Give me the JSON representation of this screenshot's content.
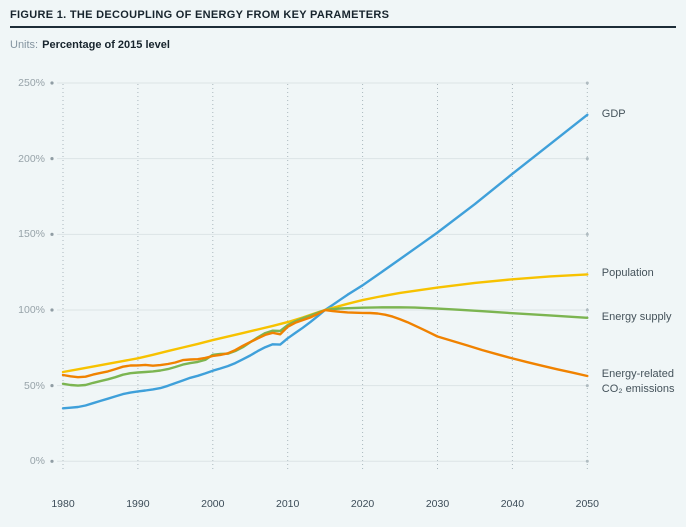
{
  "header": {
    "title": "FIGURE 1. THE DECOUPLING OF ENERGY FROM KEY PARAMETERS"
  },
  "units": {
    "prefix": "Units:",
    "value": "Percentage of 2015 level"
  },
  "colors": {
    "background": "#f0f6f7",
    "title_text": "#17242d",
    "rule": "#1d2d38",
    "grid_horizontal": "#dce4e6",
    "grid_vertical": "#aab7bd",
    "grid_end_dot": "#b0bcc1",
    "tick_dot": "#909da4",
    "y_tick_text": "#97a3a9",
    "x_tick_text": "#3c4c58",
    "legend_text": "#45535b",
    "gdp": "#3fa0da",
    "population": "#f7c200",
    "energy_supply": "#7cb551",
    "co2_emissions": "#f08200"
  },
  "chart_data": {
    "type": "line",
    "title": "FIGURE 1. THE DECOUPLING OF ENERGY FROM KEY PARAMETERS",
    "units_label": "Percentage of 2015 level",
    "x_range": [
      1980,
      2050
    ],
    "y_range": [
      0,
      250
    ],
    "x_ticks": [
      "1980",
      "1990",
      "2000",
      "2010",
      "2020",
      "2030",
      "2040",
      "2050"
    ],
    "x_tick_values": [
      1980,
      1990,
      2000,
      2010,
      2020,
      2030,
      2040,
      2050
    ],
    "y_ticks": [
      "250%",
      "200%",
      "150%",
      "100%",
      "50%",
      "0%"
    ],
    "y_tick_values": [
      250,
      200,
      150,
      100,
      50,
      0
    ],
    "grid": "horizontal solid lines, vertical dotted lines",
    "legend_position": "right of line ends",
    "convergence_note": "all series indexed to 100% at 2015",
    "series": [
      {
        "name": "gdp",
        "label_lines": [
          "GDP"
        ],
        "color": "#3fa0da",
        "points": [
          [
            1980,
            35
          ],
          [
            1981,
            35.4
          ],
          [
            1982,
            35.9
          ],
          [
            1983,
            36.9
          ],
          [
            1984,
            38.4
          ],
          [
            1985,
            39.9
          ],
          [
            1986,
            41.4
          ],
          [
            1987,
            42.9
          ],
          [
            1988,
            44.4
          ],
          [
            1989,
            45.4
          ],
          [
            1990,
            46.2
          ],
          [
            1991,
            46.8
          ],
          [
            1992,
            47.5
          ],
          [
            1993,
            48.4
          ],
          [
            1994,
            49.9
          ],
          [
            1995,
            51.7
          ],
          [
            1996,
            53.4
          ],
          [
            1997,
            55.2
          ],
          [
            1998,
            56.5
          ],
          [
            1999,
            58.1
          ],
          [
            2000,
            59.9
          ],
          [
            2001,
            61.3
          ],
          [
            2002,
            62.9
          ],
          [
            2003,
            64.9
          ],
          [
            2004,
            67.4
          ],
          [
            2005,
            69.9
          ],
          [
            2006,
            72.8
          ],
          [
            2007,
            75.4
          ],
          [
            2008,
            77.3
          ],
          [
            2009,
            77.1
          ],
          [
            2010,
            81.3
          ],
          [
            2011,
            84.8
          ],
          [
            2012,
            88.2
          ],
          [
            2013,
            91.9
          ],
          [
            2014,
            95.9
          ],
          [
            2015,
            100
          ],
          [
            2016,
            103.3
          ],
          [
            2017,
            106.7
          ],
          [
            2018,
            110.1
          ],
          [
            2019,
            113.2
          ],
          [
            2020,
            116.3
          ],
          [
            2022,
            123.2
          ],
          [
            2025,
            133.6
          ],
          [
            2028,
            144.1
          ],
          [
            2030,
            151.2
          ],
          [
            2035,
            170
          ],
          [
            2040,
            190
          ],
          [
            2045,
            209.5
          ],
          [
            2050,
            229
          ]
        ]
      },
      {
        "name": "population",
        "label_lines": [
          "Population"
        ],
        "color": "#f7c200",
        "points": [
          [
            1980,
            59
          ],
          [
            1982,
            60.8
          ],
          [
            1984,
            62.6
          ],
          [
            1986,
            64.4
          ],
          [
            1988,
            66.2
          ],
          [
            1990,
            68.1
          ],
          [
            1992,
            70.4
          ],
          [
            1994,
            72.8
          ],
          [
            1996,
            75.2
          ],
          [
            1998,
            77.6
          ],
          [
            2000,
            80.1
          ],
          [
            2002,
            82.4
          ],
          [
            2004,
            84.7
          ],
          [
            2006,
            87.1
          ],
          [
            2008,
            89.5
          ],
          [
            2010,
            92
          ],
          [
            2012,
            95
          ],
          [
            2014,
            98.4
          ],
          [
            2015,
            100
          ],
          [
            2016,
            101.4
          ],
          [
            2018,
            104.1
          ],
          [
            2020,
            106.5
          ],
          [
            2022,
            108.6
          ],
          [
            2025,
            111.3
          ],
          [
            2030,
            114.8
          ],
          [
            2035,
            117.9
          ],
          [
            2040,
            120.3
          ],
          [
            2045,
            122.2
          ],
          [
            2050,
            123.5
          ]
        ]
      },
      {
        "name": "energy-supply",
        "label_lines": [
          "Energy supply"
        ],
        "color": "#7cb551",
        "points": [
          [
            1980,
            51.2
          ],
          [
            1981,
            50.4
          ],
          [
            1982,
            50
          ],
          [
            1983,
            50.4
          ],
          [
            1984,
            51.8
          ],
          [
            1985,
            53
          ],
          [
            1986,
            54.2
          ],
          [
            1987,
            55.6
          ],
          [
            1988,
            57.2
          ],
          [
            1989,
            58.2
          ],
          [
            1990,
            58.7
          ],
          [
            1991,
            59
          ],
          [
            1992,
            59.4
          ],
          [
            1993,
            60
          ],
          [
            1994,
            60.9
          ],
          [
            1995,
            62.3
          ],
          [
            1996,
            63.9
          ],
          [
            1997,
            64.9
          ],
          [
            1998,
            65.7
          ],
          [
            1999,
            67
          ],
          [
            2000,
            70.4
          ],
          [
            2001,
            70.9
          ],
          [
            2002,
            71.1
          ],
          [
            2003,
            72.9
          ],
          [
            2004,
            75.4
          ],
          [
            2005,
            78.7
          ],
          [
            2006,
            81.9
          ],
          [
            2007,
            84.7
          ],
          [
            2008,
            86.3
          ],
          [
            2009,
            86.1
          ],
          [
            2010,
            90
          ],
          [
            2011,
            92.5
          ],
          [
            2012,
            94.6
          ],
          [
            2013,
            96.3
          ],
          [
            2014,
            98.2
          ],
          [
            2015,
            100
          ],
          [
            2016,
            100.6
          ],
          [
            2017,
            101
          ],
          [
            2018,
            101.2
          ],
          [
            2020,
            101.5
          ],
          [
            2022,
            101.7
          ],
          [
            2025,
            101.8
          ],
          [
            2027,
            101.6
          ],
          [
            2030,
            100.9
          ],
          [
            2033,
            100.1
          ],
          [
            2036,
            99.2
          ],
          [
            2040,
            97.9
          ],
          [
            2045,
            96.4
          ],
          [
            2050,
            94.8
          ]
        ]
      },
      {
        "name": "co2-emissions",
        "label_lines": [
          "Energy-related",
          "CO₂ emissions"
        ],
        "color": "#f08200",
        "points": [
          [
            1980,
            57
          ],
          [
            1981,
            56.2
          ],
          [
            1982,
            55.6
          ],
          [
            1983,
            55.9
          ],
          [
            1984,
            57.3
          ],
          [
            1985,
            58.4
          ],
          [
            1986,
            59.4
          ],
          [
            1987,
            60.9
          ],
          [
            1988,
            62.5
          ],
          [
            1989,
            63.3
          ],
          [
            1990,
            63.4
          ],
          [
            1991,
            63.7
          ],
          [
            1992,
            63.2
          ],
          [
            1993,
            63.6
          ],
          [
            1994,
            64.3
          ],
          [
            1995,
            65.3
          ],
          [
            1996,
            66.9
          ],
          [
            1997,
            67.3
          ],
          [
            1998,
            67.5
          ],
          [
            1999,
            68.3
          ],
          [
            2000,
            69.6
          ],
          [
            2001,
            70.3
          ],
          [
            2002,
            71.4
          ],
          [
            2003,
            73.5
          ],
          [
            2004,
            76.3
          ],
          [
            2005,
            78.8
          ],
          [
            2006,
            81.2
          ],
          [
            2007,
            83.5
          ],
          [
            2008,
            84.9
          ],
          [
            2009,
            83.9
          ],
          [
            2010,
            88.9
          ],
          [
            2011,
            91.5
          ],
          [
            2012,
            93.3
          ],
          [
            2013,
            95
          ],
          [
            2014,
            97.4
          ],
          [
            2015,
            100
          ],
          [
            2016,
            99.3
          ],
          [
            2017,
            98.8
          ],
          [
            2018,
            98.4
          ],
          [
            2019,
            98.2
          ],
          [
            2020,
            98.1
          ],
          [
            2021,
            98
          ],
          [
            2022,
            97.7
          ],
          [
            2023,
            96.9
          ],
          [
            2024,
            95.6
          ],
          [
            2025,
            93.9
          ],
          [
            2026,
            91.9
          ],
          [
            2027,
            89.6
          ],
          [
            2028,
            87.3
          ],
          [
            2029,
            84.9
          ],
          [
            2030,
            82.5
          ],
          [
            2032,
            79.5
          ],
          [
            2034,
            76.5
          ],
          [
            2036,
            73.5
          ],
          [
            2038,
            70.7
          ],
          [
            2040,
            68
          ],
          [
            2042,
            65.5
          ],
          [
            2044,
            63.1
          ],
          [
            2046,
            60.8
          ],
          [
            2048,
            58.6
          ],
          [
            2050,
            56.4
          ]
        ]
      }
    ]
  }
}
